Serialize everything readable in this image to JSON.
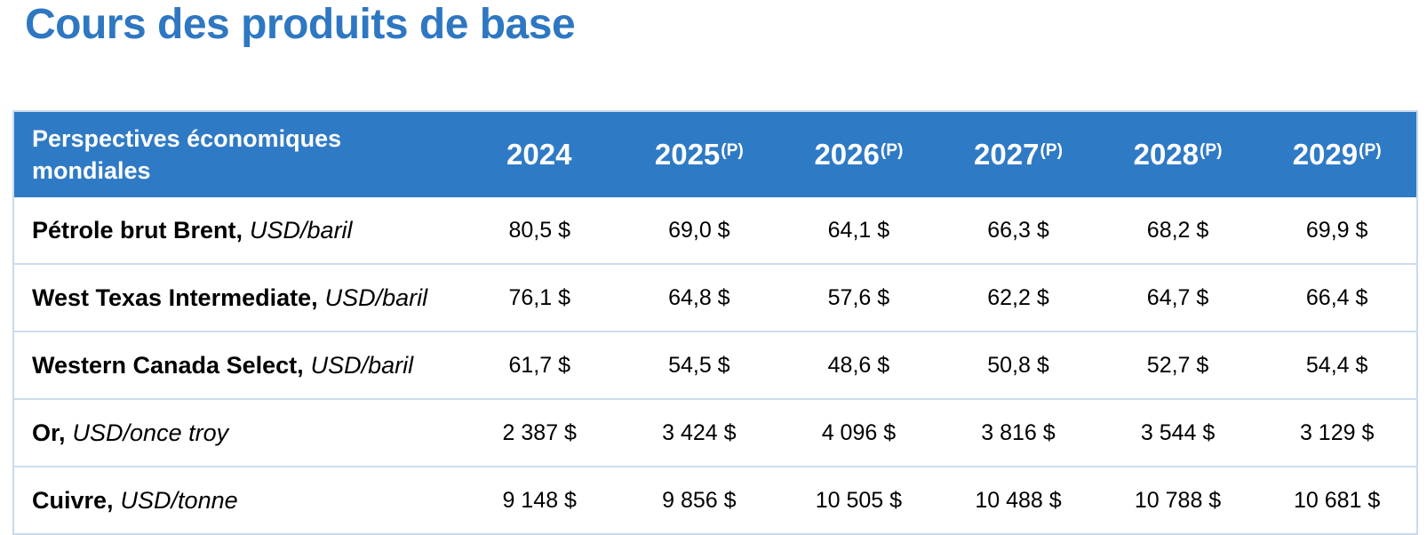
{
  "page": {
    "title": "Cours des produits de base"
  },
  "table": {
    "header": {
      "label": "Perspectives économiques mondiales",
      "columns": [
        {
          "year": "2024",
          "note": ""
        },
        {
          "year": "2025",
          "note": "(P)"
        },
        {
          "year": "2026",
          "note": "(P)"
        },
        {
          "year": "2027",
          "note": "(P)"
        },
        {
          "year": "2028",
          "note": "(P)"
        },
        {
          "year": "2029",
          "note": "(P)"
        }
      ]
    },
    "rows": [
      {
        "name": "Pétrole brut Brent,",
        "unit": "USD/baril",
        "values": [
          "80,5 $",
          "69,0 $",
          "64,1 $",
          "66,3 $",
          "68,2 $",
          "69,9 $"
        ]
      },
      {
        "name": "West Texas Intermediate,",
        "unit": "USD/baril",
        "values": [
          "76,1 $",
          "64,8 $",
          "57,6 $",
          "62,2 $",
          "64,7 $",
          "66,4 $"
        ]
      },
      {
        "name": "Western Canada Select,",
        "unit": "USD/baril",
        "values": [
          "61,7 $",
          "54,5 $",
          "48,6 $",
          "50,8 $",
          "52,7 $",
          "54,4 $"
        ]
      },
      {
        "name": "Or,",
        "unit": "USD/once troy",
        "values": [
          "2 387 $",
          "3 424 $",
          "4 096 $",
          "3 816 $",
          "3 544 $",
          "3 129 $"
        ]
      },
      {
        "name": "Cuivre,",
        "unit": "USD/tonne",
        "values": [
          "9 148 $",
          "9 856 $",
          "10 505 $",
          "10 488 $",
          "10 788 $",
          "10 681 $"
        ]
      }
    ]
  },
  "colors": {
    "title_blue": "#2E77C2",
    "header_blue": "#2F7AC5",
    "separator_blue": "#CCDCEE",
    "outer_border_blue": "#C9DAEC",
    "text": "#000000"
  }
}
